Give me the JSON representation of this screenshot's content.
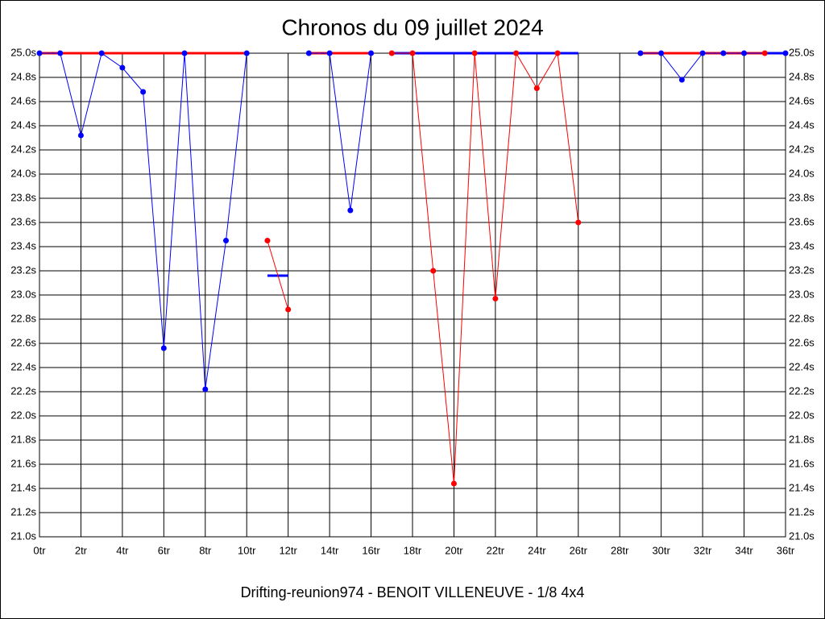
{
  "chart_data": {
    "type": "line",
    "title": "Chronos du 09 juillet 2024",
    "subtitle": "Drifting-reunion974 - BENOIT VILLENEUVE - 1/8 4x4",
    "xlim": [
      0,
      36
    ],
    "ylim": [
      21,
      25
    ],
    "grid": true,
    "right_axis": true,
    "xticks": [
      {
        "value": 0,
        "label": "0tr"
      },
      {
        "value": 2,
        "label": "2tr"
      },
      {
        "value": 4,
        "label": "4tr"
      },
      {
        "value": 6,
        "label": "6tr"
      },
      {
        "value": 8,
        "label": "8tr"
      },
      {
        "value": 10,
        "label": "10tr"
      },
      {
        "value": 12,
        "label": "12tr"
      },
      {
        "value": 14,
        "label": "14tr"
      },
      {
        "value": 16,
        "label": "16tr"
      },
      {
        "value": 18,
        "label": "18tr"
      },
      {
        "value": 20,
        "label": "20tr"
      },
      {
        "value": 22,
        "label": "22tr"
      },
      {
        "value": 24,
        "label": "24tr"
      },
      {
        "value": 26,
        "label": "26tr"
      },
      {
        "value": 28,
        "label": "28tr"
      },
      {
        "value": 30,
        "label": "30tr"
      },
      {
        "value": 32,
        "label": "32tr"
      },
      {
        "value": 34,
        "label": "34tr"
      },
      {
        "value": 36,
        "label": "36tr"
      }
    ],
    "yticks": [
      {
        "value": 21.0,
        "label": "21.0s"
      },
      {
        "value": 21.2,
        "label": "21.2s"
      },
      {
        "value": 21.4,
        "label": "21.4s"
      },
      {
        "value": 21.6,
        "label": "21.6s"
      },
      {
        "value": 21.8,
        "label": "21.8s"
      },
      {
        "value": 22.0,
        "label": "22.0s"
      },
      {
        "value": 22.2,
        "label": "22.2s"
      },
      {
        "value": 22.4,
        "label": "22.4s"
      },
      {
        "value": 22.6,
        "label": "22.6s"
      },
      {
        "value": 22.8,
        "label": "22.8s"
      },
      {
        "value": 23.0,
        "label": "23.0s"
      },
      {
        "value": 23.2,
        "label": "23.2s"
      },
      {
        "value": 23.4,
        "label": "23.4s"
      },
      {
        "value": 23.6,
        "label": "23.6s"
      },
      {
        "value": 23.8,
        "label": "23.8s"
      },
      {
        "value": 24.0,
        "label": "24.0s"
      },
      {
        "value": 24.2,
        "label": "24.2s"
      },
      {
        "value": 24.4,
        "label": "24.4s"
      },
      {
        "value": 24.6,
        "label": "24.6s"
      },
      {
        "value": 24.8,
        "label": "24.8s"
      },
      {
        "value": 25.0,
        "label": "25.0s"
      }
    ],
    "series": [
      {
        "color": "#ff0000",
        "line_width": 3,
        "markers": false,
        "x": [
          0,
          10,
          11,
          13,
          16,
          17,
          29,
          35
        ],
        "values": [
          25,
          25,
          null,
          25,
          25,
          null,
          25,
          25
        ]
      },
      {
        "color": "#0000ff",
        "line_width": 3,
        "markers": false,
        "x": [
          17,
          26,
          27,
          35,
          36
        ],
        "values": [
          25,
          25,
          null,
          25,
          25
        ]
      },
      {
        "color": "#0000ff",
        "line_width": 3,
        "markers": false,
        "x": [
          11,
          12
        ],
        "values": [
          23.16,
          23.16
        ]
      },
      {
        "color": "#0000ff",
        "line_width": 1,
        "markers": true,
        "x": [
          0,
          1,
          2,
          3,
          4,
          5,
          6,
          7,
          8,
          9,
          10,
          11,
          13,
          14,
          15,
          16,
          17,
          29,
          30,
          31,
          32,
          33,
          34,
          36
        ],
        "values": [
          25,
          25,
          24.32,
          25,
          24.88,
          24.68,
          22.56,
          25,
          22.22,
          23.45,
          25,
          null,
          25,
          25,
          23.7,
          25,
          null,
          25,
          25,
          24.78,
          25,
          25,
          25,
          25
        ]
      },
      {
        "color": "#ff0000",
        "line_width": 1,
        "markers": true,
        "x": [
          11,
          12,
          13,
          17,
          18,
          19,
          20,
          21,
          22,
          23,
          24,
          25,
          26,
          27,
          35
        ],
        "values": [
          23.45,
          22.88,
          null,
          25,
          25,
          23.2,
          21.44,
          25,
          22.97,
          25,
          24.71,
          25,
          23.6,
          null,
          25
        ]
      }
    ]
  }
}
